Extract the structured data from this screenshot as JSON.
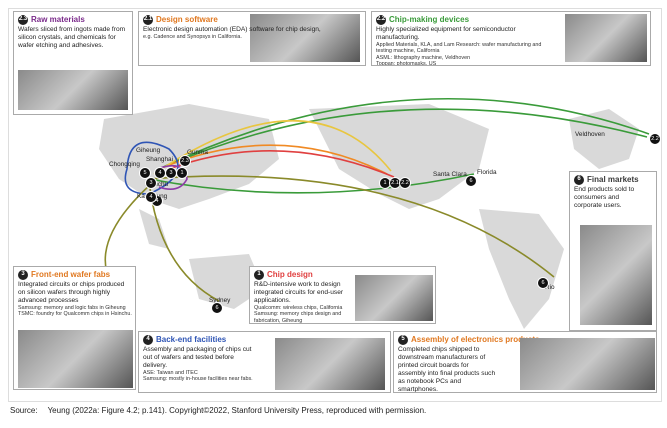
{
  "panels": [
    {
      "number": "2.3",
      "title": "Raw materials",
      "text": "Wafers sliced from ingots made from silicon crystals, and chemicals for wafer etching and adhesives.",
      "notes": []
    },
    {
      "number": "2.1",
      "title": "Design software",
      "text": "Electronic design automation (EDA) software for chip design,",
      "notes": [
        "e.g. Cadence and Synopsys in California."
      ]
    },
    {
      "number": "2.2",
      "title": "Chip-making devices",
      "text": "Highly specialized equipment for semiconductor manufacturing.",
      "notes": [
        "Applied Materials, KLA, and Lam Research: wafer manufacturing and testing machine, California",
        "ASML: lithography machine, Veldhoven",
        "Toppan: photomasks, US"
      ]
    },
    {
      "number": "6",
      "title": "Final markets",
      "text": "End products sold to consumers and corporate users.",
      "notes": []
    },
    {
      "number": "3",
      "title": "Front-end wafer fabs",
      "text": "Integrated circuits or chips produced on silicon wafers through highly advanced processes",
      "notes": [
        "Samsung: memory and logic fabs in Giheung",
        "TSMC: foundry for Qualcomm chips in Hsinchu."
      ]
    },
    {
      "number": "1",
      "title": "Chip design",
      "text": "R&D-intensive work to design integrated circuits for end-user applications.",
      "notes": [
        "Qualcomm: wireless chips, California",
        "Samsung: memory chips design and fabrication, Giheung"
      ]
    },
    {
      "number": "4",
      "title": "Back-end facilities",
      "text": "Assembly and packaging of chips cut out of wafers and tested before delivery.",
      "notes": [
        "ASE: Taiwan and ITEC",
        "Samsung: mostly in-house facilities near fabs."
      ]
    },
    {
      "number": "5",
      "title": "Assembly of electronics products",
      "text": "Completed chips shipped to downstream manufacturers of printed circuit boards for assembly into final products such as notebook PCs and smartphones.",
      "notes": []
    }
  ],
  "places": [
    {
      "label": "Giheung",
      "badges": [
        "4",
        "3",
        "1"
      ]
    },
    {
      "label": "Shanghai",
      "badges": []
    },
    {
      "label": "Chongqing",
      "badges": [
        "5"
      ]
    },
    {
      "label": "Gunma",
      "badges": [
        "2.3"
      ]
    },
    {
      "label": "Hsinchu",
      "badges": [
        "3",
        "4"
      ]
    },
    {
      "label": "Kaohsiung",
      "badges": [
        "4"
      ]
    },
    {
      "label": "Santa Clara",
      "badges": [
        "1",
        "2.1",
        "2.2"
      ]
    },
    {
      "label": "Florida",
      "badges": [
        "6"
      ]
    },
    {
      "label": "Veldhoven",
      "badges": [
        "2.2"
      ]
    },
    {
      "label": "Rio",
      "badges": [
        "6"
      ]
    },
    {
      "label": "Sydney",
      "badges": [
        "6"
      ]
    }
  ],
  "source": {
    "label": "Source:",
    "text": "Yeung (2022a: Figure 4.2; p.141). Copyright©2022, Stanford University Press, reproduced with permission."
  }
}
